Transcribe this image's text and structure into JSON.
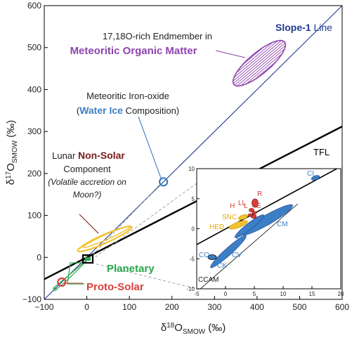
{
  "chart_data": {
    "type": "scatter",
    "xlabel": "δ18OSMOW (‰)",
    "ylabel": "δ17OSMOW (‰)",
    "xlim": [
      -100,
      600
    ],
    "ylim": [
      -100,
      600
    ],
    "xticks": [
      -100,
      0,
      100,
      200,
      300,
      400,
      500,
      600
    ],
    "yticks": [
      -100,
      0,
      100,
      200,
      300,
      400,
      500,
      600
    ],
    "lines": [
      {
        "name": "Slope-1 Line",
        "slope": 1.0,
        "intercept": 0,
        "color": "#1f3a8f"
      },
      {
        "name": "TFL",
        "slope": 0.52,
        "intercept": 0,
        "color": "#000000"
      }
    ],
    "points": [
      {
        "label": "Meteoritic Iron-oxide (Water Ice Composition)",
        "x": 180,
        "y": 180,
        "color": "#3b7fc4"
      },
      {
        "label": "Proto-Solar",
        "x": -59,
        "y": -59,
        "color": "#d9403a"
      }
    ],
    "regions": [
      {
        "label": "17,18O-rich Endmember in Meteoritic Organic Matter",
        "cx": 405,
        "cy": 460,
        "color": "#8e44ad"
      },
      {
        "label": "Lunar Non-Solar Component (Volatile accretion on Moon?)",
        "cx": 42,
        "cy": 45,
        "color": "#f2c22e"
      },
      {
        "label": "Planetary",
        "cx": 0,
        "cy": 0,
        "color": "#2aa84a"
      }
    ],
    "annotations": {
      "slope1_bold": "Slope-1",
      "slope1_rest": " Line",
      "tfl": "TFL",
      "mom_line1": "17,18O-rich Endmember in",
      "mom_line2": "Meteoritic Organic Matter",
      "iron_line1": "Meteoritic Iron-oxide",
      "iron_paren_open": "(",
      "iron_bold": "Water Ice",
      "iron_rest": " Composition)",
      "lunar_line1_pre": "Lunar ",
      "lunar_bold": "Non-Solar",
      "lunar_line2": "Component",
      "lunar_line3": "(Volatile accretion on",
      "lunar_line4": "Moon?)",
      "planetary": "Planetary",
      "protosolar": "Proto-Solar"
    },
    "inset": {
      "xlim": [
        -5,
        20
      ],
      "ylim": [
        -10,
        10
      ],
      "xticks": [
        -5,
        0,
        5,
        10,
        15,
        20
      ],
      "yticks": [
        -10,
        -5,
        0,
        5,
        10
      ],
      "xticks_labels": [
        "-5",
        "0",
        "5",
        "10",
        "15",
        "20"
      ],
      "yticks_labels": [
        "-10",
        "-5",
        "0",
        "5",
        "10"
      ],
      "groups": [
        {
          "label": "CI",
          "color": "#3b7fc4"
        },
        {
          "label": "R",
          "color": "#d9403a"
        },
        {
          "label": "L",
          "color": "#d9403a"
        },
        {
          "label": "LL",
          "color": "#d9403a"
        },
        {
          "label": "H",
          "color": "#d9403a"
        },
        {
          "label": "E",
          "color": "#d9403a"
        },
        {
          "label": "SNC",
          "color": "#e6a800"
        },
        {
          "label": "HED",
          "color": "#e6a800"
        },
        {
          "label": "CR",
          "color": "#3b7fc4"
        },
        {
          "label": "CM",
          "color": "#3b7fc4"
        },
        {
          "label": "CO",
          "color": "#3b7fc4"
        },
        {
          "label": "CV",
          "color": "#3b7fc4"
        },
        {
          "label": "CK",
          "color": "#3b7fc4"
        },
        {
          "label": "CCAM",
          "color": "#222222"
        }
      ]
    }
  }
}
